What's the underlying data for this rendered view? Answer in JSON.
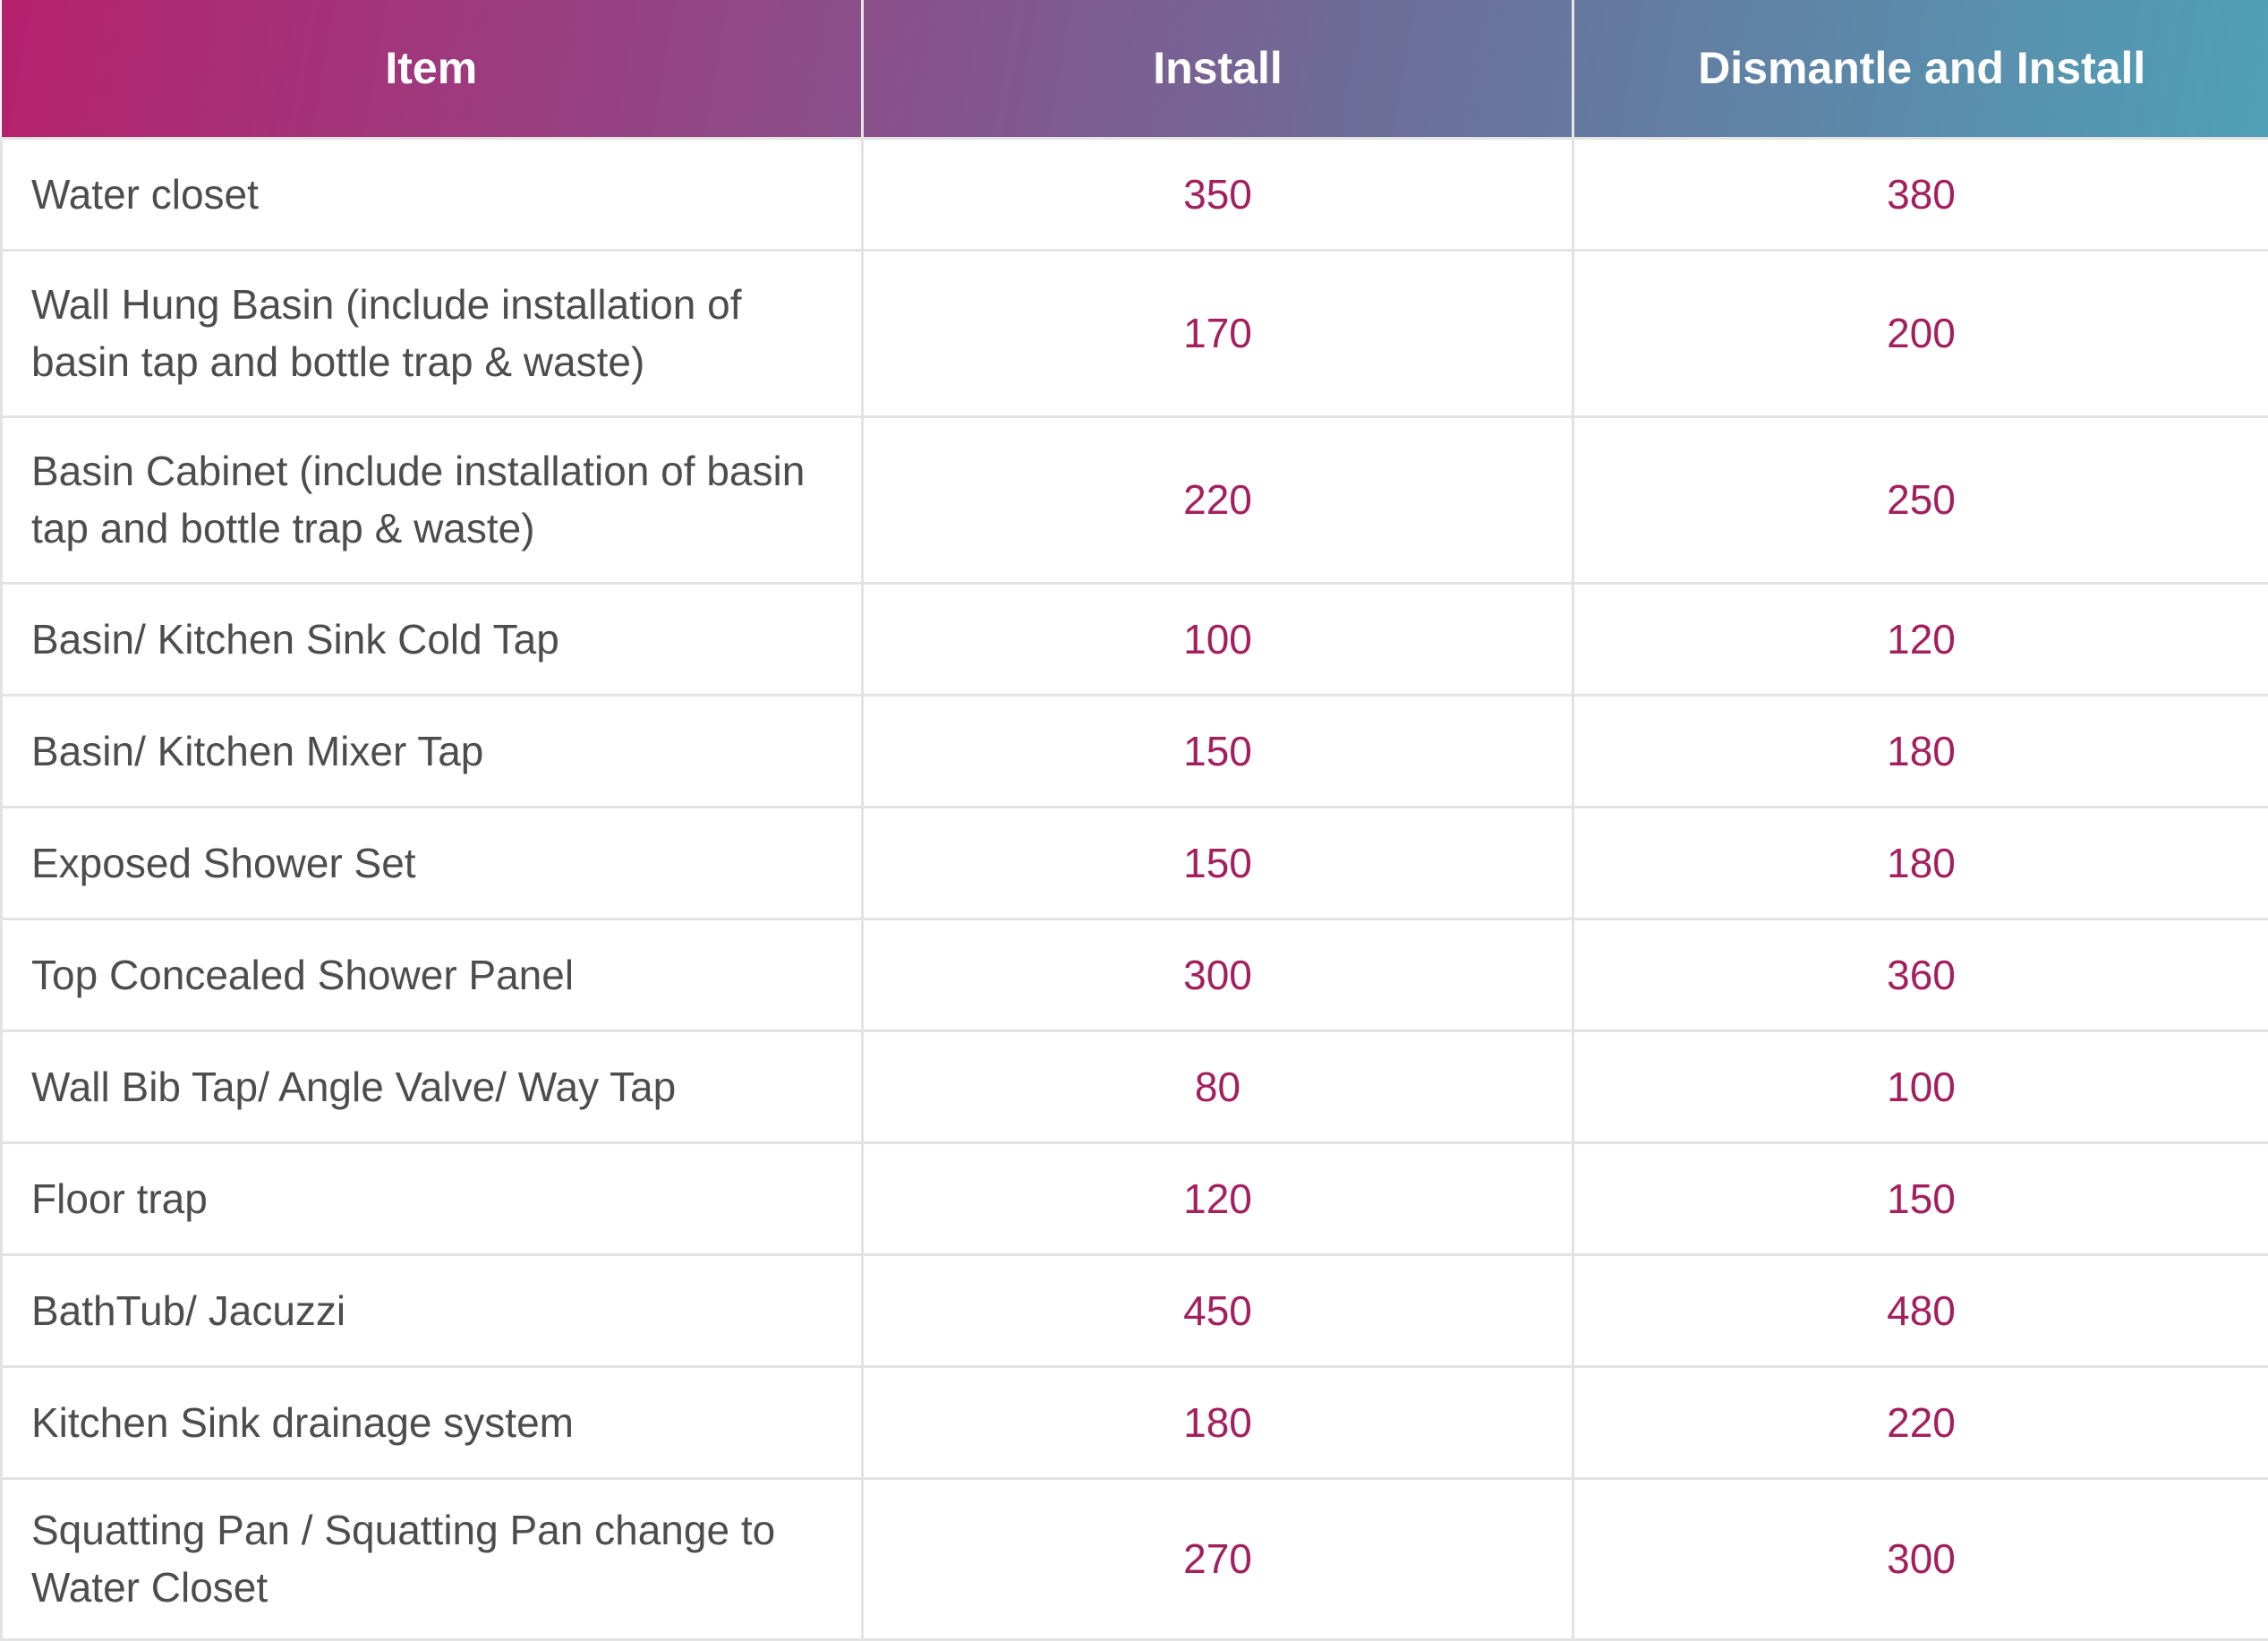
{
  "table": {
    "headers": [
      "Item",
      "Install",
      "Dismantle and Install"
    ],
    "rows": [
      {
        "item": "Water closet",
        "install": "350",
        "dismantle_install": "380",
        "lines": 1
      },
      {
        "item": "Wall Hung Basin (include installation of basin tap and bottle trap & waste)",
        "install": "170",
        "dismantle_install": "200",
        "lines": 2
      },
      {
        "item": "Basin Cabinet (include installation of basin tap and bottle trap & waste)",
        "install": "220",
        "dismantle_install": "250",
        "lines": 2
      },
      {
        "item": "Basin/ Kitchen Sink Cold Tap",
        "install": "100",
        "dismantle_install": "120",
        "lines": 1
      },
      {
        "item": "Basin/ Kitchen Mixer Tap",
        "install": "150",
        "dismantle_install": "180",
        "lines": 1
      },
      {
        "item": "Exposed Shower Set",
        "install": "150",
        "dismantle_install": "180",
        "lines": 1
      },
      {
        "item": "Top Concealed Shower Panel",
        "install": "300",
        "dismantle_install": "360",
        "lines": 1
      },
      {
        "item": "Wall Bib Tap/ Angle Valve/ Way Tap",
        "install": "80",
        "dismantle_install": "100",
        "lines": 1
      },
      {
        "item": "Floor trap",
        "install": "120",
        "dismantle_install": "150",
        "lines": 1
      },
      {
        "item": "BathTub/ Jacuzzi",
        "install": "450",
        "dismantle_install": "480",
        "lines": 1
      },
      {
        "item": "Kitchen Sink drainage system",
        "install": "180",
        "dismantle_install": "220",
        "lines": 1
      },
      {
        "item": "Squatting Pan / Squatting Pan change to Water Closet",
        "install": "270",
        "dismantle_install": "300",
        "lines": 2
      }
    ]
  },
  "colors": {
    "header_gradient": [
      "#b5216e",
      "#8a4f8a",
      "#6b6f99",
      "#4fa0b7"
    ],
    "header_text": "#ffffff",
    "item_text": "#4d4d4d",
    "price_text": "#a3205f",
    "grid_line": "#e3e3e3"
  }
}
